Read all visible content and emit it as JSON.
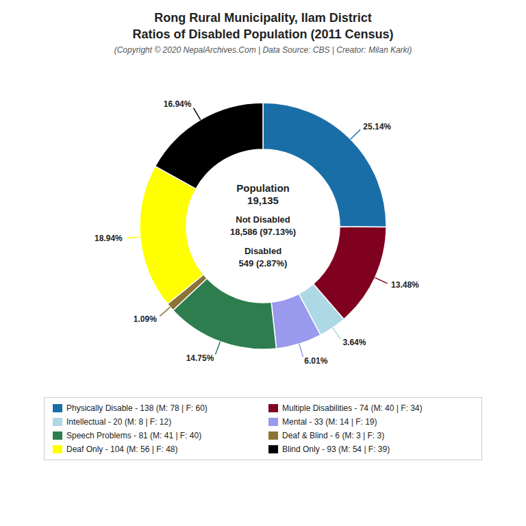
{
  "chart_data": {
    "type": "pie",
    "title": "Rong Rural Municipality, Ilam District\nRatios of Disabled Population (2011 Census)",
    "subtitle": "(Copyright © 2020 NepalArchives.Com | Data Source: CBS | Creator: Milan Karki)",
    "categories": [
      "Physically Disable - 138 (M: 78 | F: 60)",
      "Multiple Disabilities - 74 (M: 40 | F: 34)",
      "Intellectual - 20 (M: 8 | F: 12)",
      "Mental - 33 (M: 14 | F: 19)",
      "Speech Problems - 81 (M: 41 | F: 40)",
      "Deaf & Blind - 6 (M: 3 | F: 3)",
      "Deaf Only - 104 (M: 56 | F: 48)",
      "Blind Only - 93 (M: 54 | F: 39)"
    ],
    "values": [
      25.14,
      13.48,
      3.64,
      6.01,
      14.75,
      1.09,
      18.94,
      16.94
    ],
    "value_labels": [
      "25.14%",
      "13.48%",
      "3.64%",
      "6.01%",
      "14.75%",
      "1.09%",
      "18.94%",
      "16.94%"
    ],
    "colors": [
      "#1a6ea8",
      "#800020",
      "#add8e6",
      "#9999ee",
      "#2e7d4f",
      "#8b7536",
      "#ffff00",
      "#000000"
    ],
    "data_labels": true,
    "legend": "bottom",
    "annotations": [
      "Population\n19,135",
      "Not Disabled\n18,586 (97.13%)",
      "Disabled\n549 (2.87%)"
    ]
  }
}
